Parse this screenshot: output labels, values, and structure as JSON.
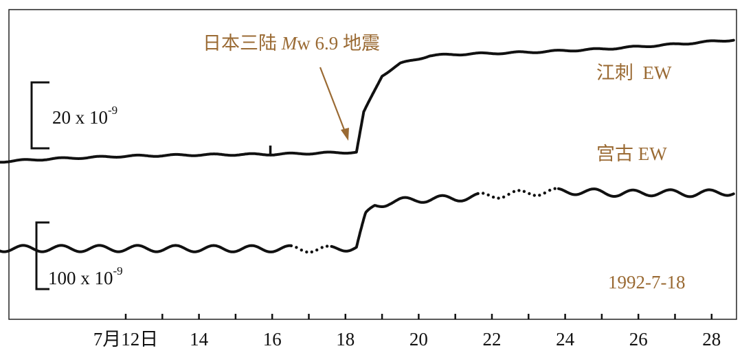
{
  "chart_data": {
    "type": "line",
    "x_unit": "day of July 1992",
    "x_range": [
      7.6,
      28.6
    ],
    "x_ticks": [
      12,
      13,
      14,
      15,
      16,
      17,
      18,
      19,
      20,
      21,
      22,
      23,
      24,
      25,
      26,
      27,
      28
    ],
    "x_tick_labels": [
      {
        "x": 12,
        "label": "7月12日"
      },
      {
        "x": 14,
        "label": "14"
      },
      {
        "x": 16,
        "label": "16"
      },
      {
        "x": 18,
        "label": "18"
      },
      {
        "x": 20,
        "label": "20"
      },
      {
        "x": 22,
        "label": "22"
      },
      {
        "x": 24,
        "label": "24"
      },
      {
        "x": 26,
        "label": "26"
      },
      {
        "x": 28,
        "label": "28"
      }
    ],
    "event_day": 18.3,
    "annotation": {
      "text_main": "日本三陆 ",
      "text_italic": "M",
      "text_rest": "w 6.9 地震"
    },
    "date_label": "1992-7-18",
    "scale_bars": [
      {
        "base": "20 x 10",
        "exponent": "-9"
      },
      {
        "base": "100 x 10",
        "exponent": "-9"
      }
    ],
    "series": [
      {
        "name": "江刺  EW",
        "unit": "1e-9 strain",
        "trend": [
          [
            8.0,
            0
          ],
          [
            10,
            1.5
          ],
          [
            12,
            2.5
          ],
          [
            14,
            3.0
          ],
          [
            16,
            3.2
          ],
          [
            18.3,
            4.0
          ],
          [
            18.5,
            19.0
          ],
          [
            19,
            33.0
          ],
          [
            19.5,
            37.5
          ],
          [
            20.3,
            40.5
          ],
          [
            21,
            41.0
          ],
          [
            23,
            41.8
          ],
          [
            25,
            43.0
          ],
          [
            27,
            44.8
          ],
          [
            28.6,
            46.5
          ]
        ],
        "tide_amplitude": 0.3,
        "dotted_ranges": [],
        "spikes": [
          {
            "x": 15.95,
            "value": 6.5
          }
        ]
      },
      {
        "name": "宫古 EW",
        "unit": "1e-9 strain",
        "trend": [
          [
            8.0,
            0
          ],
          [
            13,
            0
          ],
          [
            16.5,
            -0.5
          ],
          [
            17.5,
            -1.5
          ],
          [
            18.3,
            2.5
          ],
          [
            18.4,
            27.0
          ],
          [
            18.55,
            62.0
          ],
          [
            18.8,
            81.0
          ],
          [
            19.2,
            88.0
          ],
          [
            20,
            93.0
          ],
          [
            21,
            95.0
          ],
          [
            22,
            100.5
          ],
          [
            23.5,
            107.5
          ],
          [
            24.5,
            108.0
          ],
          [
            25.5,
            104.0
          ],
          [
            26.5,
            106.0
          ],
          [
            27.5,
            104.0
          ],
          [
            28.6,
            107.0
          ]
        ],
        "tide_amplitude": 6.0,
        "dotted_ranges": [
          [
            16.5,
            17.6
          ],
          [
            21.6,
            23.8
          ]
        ],
        "spikes": []
      }
    ]
  }
}
